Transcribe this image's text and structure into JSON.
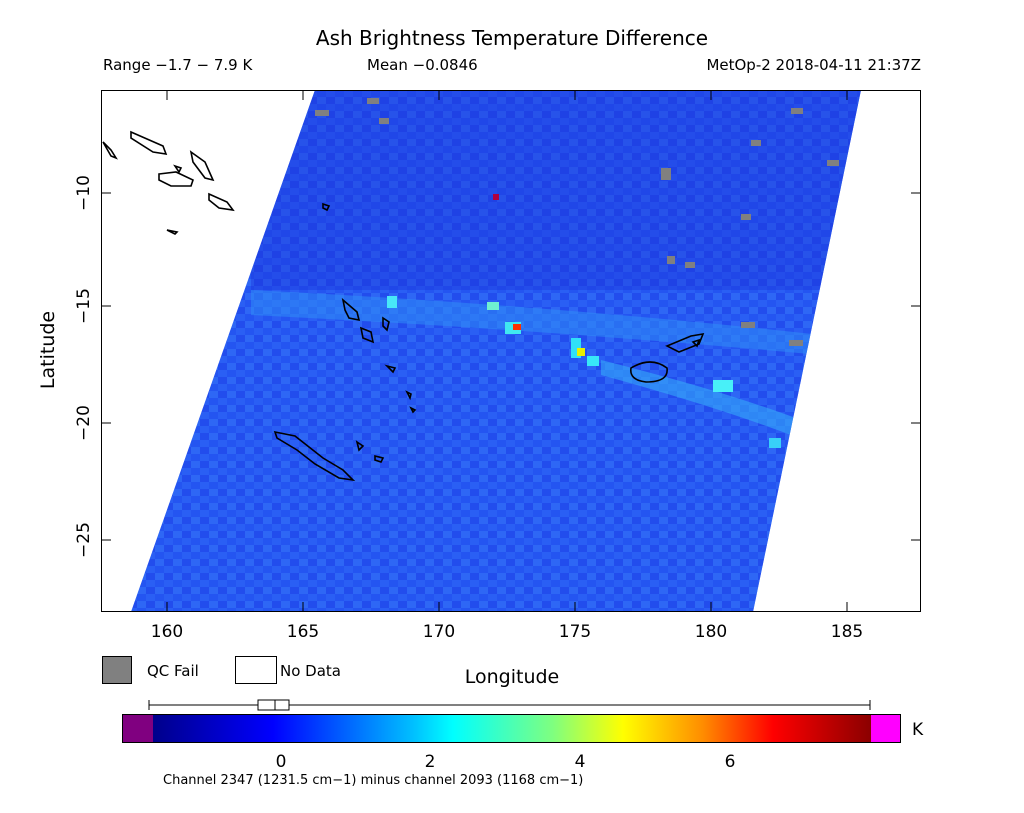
{
  "title": "Ash Brightness Temperature Difference",
  "range_text": "Range −1.7 − 7.9 K",
  "mean_text": "Mean −0.0846",
  "satellite_text": "MetOp-2 2018-04-11 21:37Z",
  "axes": {
    "xlabel": "Longitude",
    "ylabel": "Latitude",
    "x_ticks": [
      "160",
      "165",
      "170",
      "175",
      "180",
      "185"
    ],
    "y_ticks": [
      "−10",
      "−15",
      "−20",
      "−25"
    ]
  },
  "legend": {
    "qc_fail_label": "QC Fail",
    "qc_fail_color": "#808080",
    "no_data_label": "No Data",
    "no_data_color": "#ffffff"
  },
  "colorbar": {
    "ticks": [
      "0",
      "2",
      "4",
      "6"
    ],
    "unit": "K",
    "colors": [
      "#800080",
      "#00008b",
      "#0000ff",
      "#00ffff",
      "#ffff00",
      "#ff0000",
      "#8b0000",
      "#ff00ff"
    ]
  },
  "footnote": "Channel 2347 (1231.5 cm−1) minus channel 2093 (1168 cm−1)"
}
